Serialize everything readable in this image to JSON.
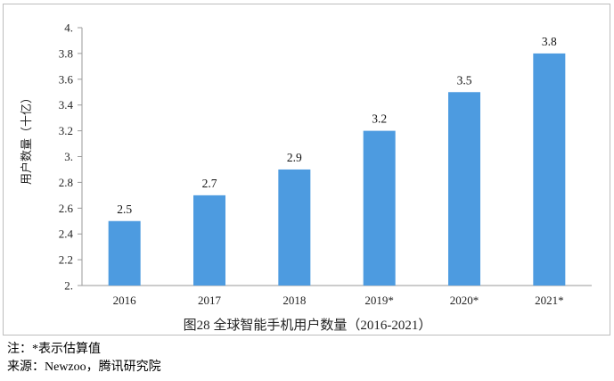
{
  "chart_data": {
    "type": "bar",
    "categories": [
      "2016",
      "2017",
      "2018",
      "2019*",
      "2020*",
      "2021*"
    ],
    "values": [
      2.5,
      2.7,
      2.9,
      3.2,
      3.5,
      3.8
    ],
    "data_labels": [
      "2.5",
      "2.7",
      "2.9",
      "3.2",
      "3.5",
      "3.8"
    ],
    "ylabel": "用户数量（十亿）",
    "ylim": [
      2.0,
      4.0
    ],
    "yticks": [
      2.0,
      2.2,
      2.4,
      2.6,
      2.8,
      3.0,
      3.2,
      3.4,
      3.6,
      3.8,
      4.0
    ],
    "ytick_labels": [
      "2.",
      "2.2",
      "2.4",
      "2.6",
      "2.8",
      "3.",
      "3.2",
      "3.4",
      "3.6",
      "3.8",
      "4."
    ],
    "grid": false,
    "legend": "none",
    "bar_color": "#4d9be0"
  },
  "caption": "图28  全球智能手机用户数量（2016-2021）",
  "notes": {
    "note": "注：*表示估算值",
    "source": "来源：Newzoo，腾讯研究院"
  }
}
